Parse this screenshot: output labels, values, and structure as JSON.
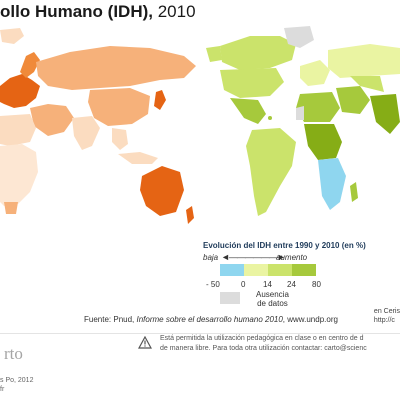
{
  "title": {
    "main": "ollo Humano (IDH),",
    "year": "2010"
  },
  "legend": {
    "title": "Evolución del IDH entre 1990 y 2010 (en %)",
    "low": "baja",
    "high": "aumento",
    "arrow": "◄——————►",
    "ticks": [
      "- 50",
      "0",
      "14",
      "24",
      "80"
    ],
    "colors": [
      "#8fd6ef",
      "#eaf4a2",
      "#cbe36b",
      "#a6c93c",
      "#86ad16"
    ],
    "absence_label_1": "Ausencia",
    "absence_label_2": "de datos",
    "absence_color": "#dcdcdc"
  },
  "credit": {
    "line1": "en Ceris",
    "line2": "http://c"
  },
  "source": {
    "prefix": "Fuente: Pnud, ",
    "report": "Informe sobre el desarrollo humano 2010",
    "suffix": ", www.undp.org"
  },
  "footer": {
    "logo": "rto",
    "copyright_line1": "s Po, 2012",
    "copyright_line2": "fr",
    "notice_line1": "Está permitida la utilización pedagógica en clase o en centro de d",
    "notice_line2": "de manera libre. Para toda otra utilización contactar: carto@scienc"
  },
  "map_colors": {
    "idh_light": "#fbdcc0",
    "idh_mid": "#f6b17a",
    "idh_high": "#f08a3a",
    "idh_top": "#e56414",
    "evo_low": "#8fd6ef",
    "evo_1": "#eaf4a2",
    "evo_2": "#cbe36b",
    "evo_3": "#a6c93c",
    "evo_4": "#86ad16",
    "no_data": "#dcdcdc"
  }
}
